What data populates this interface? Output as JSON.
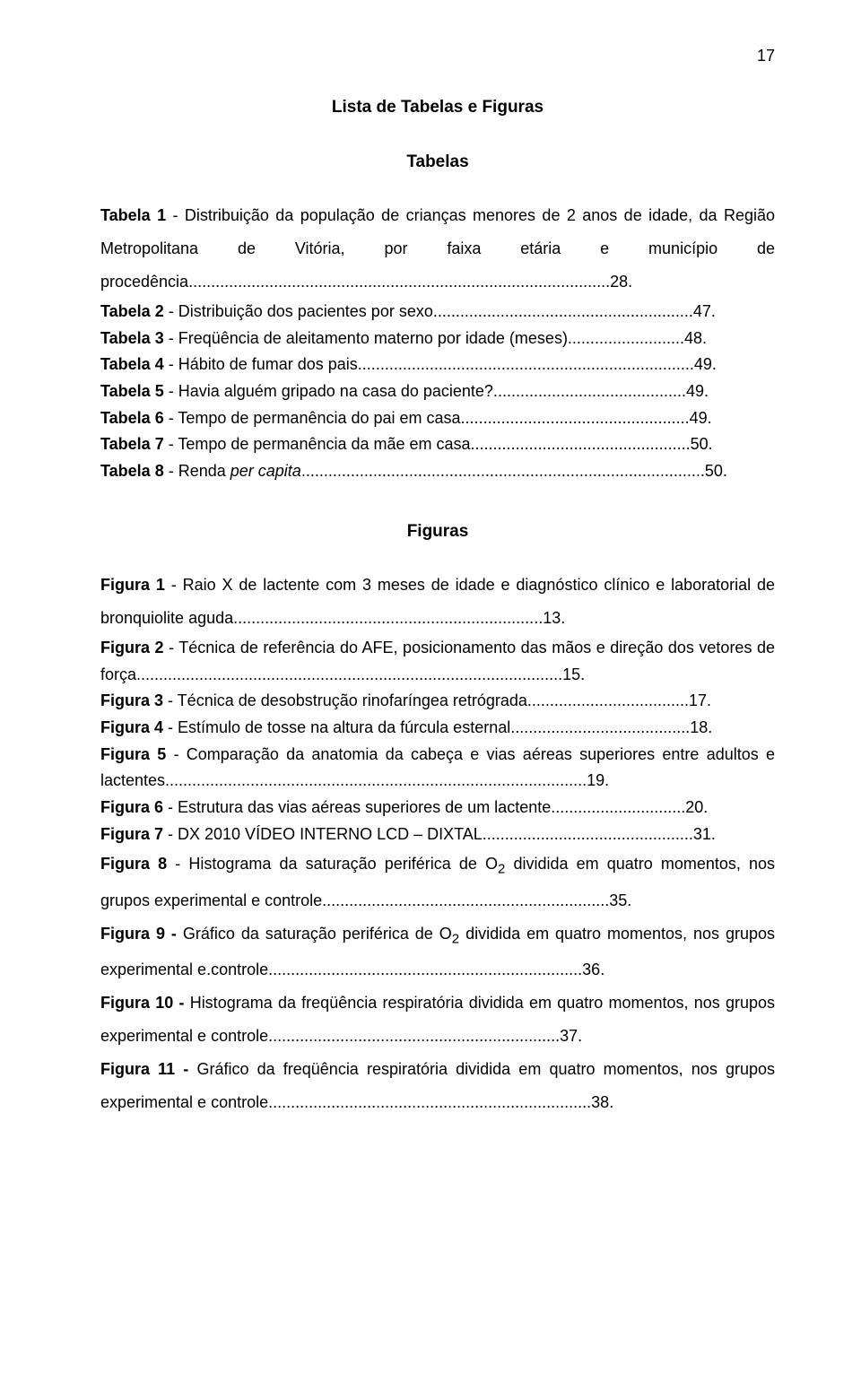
{
  "page_number": "17",
  "title": "Lista de Tabelas e Figuras",
  "tabelas_heading": "Tabelas",
  "figuras_heading": "Figuras",
  "tabelas": [
    {
      "lead": "Tabela 1",
      "text": " - Distribuição da população de crianças menores de 2 anos de idade, da Região Metropolitana de Vitória, por faixa etária e município de procedência..............................................................................................28."
    },
    {
      "lead": "Tabela 2",
      "text": " - Distribuição dos pacientes por sexo..........................................................47."
    },
    {
      "lead": "Tabela 3",
      "text": " - Freqüência de aleitamento materno por idade (meses)..........................48."
    },
    {
      "lead": "Tabela 4",
      "text": " - Hábito de fumar dos pais...........................................................................49."
    },
    {
      "lead": "Tabela 5",
      "text": " - Havia alguém gripado na casa do paciente?...........................................49."
    },
    {
      "lead": "Tabela 6",
      "text": " - Tempo de permanência do pai em casa...................................................49."
    },
    {
      "lead": "Tabela 7",
      "text": " - Tempo de permanência da mãe em casa.................................................50."
    },
    {
      "lead": "Tabela 8",
      "text_before": " - Renda ",
      "italic": "per capita",
      "text_after": "..........................................................................................50."
    }
  ],
  "figuras": [
    {
      "lead": "Figura 1",
      "text": " - Raio X de lactente com 3 meses de idade e diagnóstico clínico e laboratorial de bronquiolite aguda.....................................................................13.",
      "doublespace": true
    },
    {
      "lead": "Figura 2",
      "text": " - Técnica de referência do AFE, posicionamento das mãos e direção dos vetores de força...............................................................................................15."
    },
    {
      "lead": "Figura 3",
      "text": " - Técnica de desobstrução rinofaríngea retrógrada....................................17."
    },
    {
      "lead": "Figura 4",
      "text": " - Estímulo de tosse na altura da fúrcula esternal........................................18."
    },
    {
      "lead": "Figura 5",
      "text": " - Comparação da anatomia da cabeça e vias aéreas superiores entre adultos e lactentes..............................................................................................19."
    },
    {
      "lead": "Figura 6",
      "text": " - Estrutura das vias aéreas superiores de um lactente..............................20."
    },
    {
      "lead": "Figura 7",
      "text": " - DX 2010 VÍDEO INTERNO LCD – DIXTAL...............................................31."
    },
    {
      "lead": "Figura 8",
      "text": " - Histograma da saturação periférica de O",
      "sub": "2",
      "text_after": " dividida em quatro momentos, nos grupos experimental e controle................................................................35.",
      "doublespace": true
    },
    {
      "lead": "Figura 9 -",
      "text": " Gráfico da saturação periférica de O",
      "sub": "2",
      "text_after": " dividida em quatro momentos, nos grupos experimental e.controle......................................................................36.",
      "doublespace": true
    },
    {
      "lead": "Figura 10 -",
      "text": " Histograma da freqüência respiratória dividida em quatro momentos, nos grupos experimental e controle.................................................................37.",
      "doublespace": true
    },
    {
      "lead": "Figura 11 -",
      "text": " Gráfico da freqüência respiratória dividida em quatro momentos, nos grupos experimental e controle........................................................................38.",
      "doublespace": true
    }
  ]
}
